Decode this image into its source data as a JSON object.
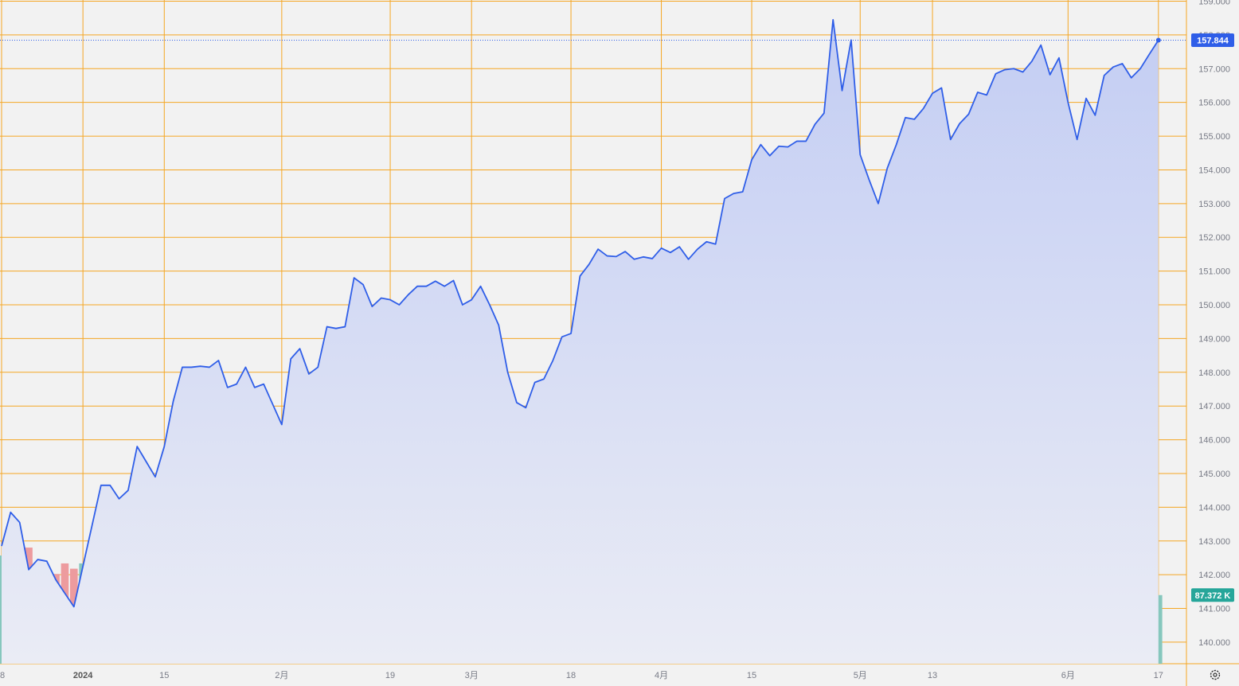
{
  "colors": {
    "background": "#f2f2f2",
    "grid": "#f5a623",
    "line": "#2f5ee8",
    "area_top": "#c3cdf3",
    "area_bottom": "#eaecf5",
    "volume_up": "#86c7bd",
    "volume_down": "#ed9b9e",
    "price_badge": "#2f5ee8",
    "volume_badge": "#26a69a"
  },
  "settings_icon": "gear-icon",
  "chart_data": {
    "type": "area",
    "title": "",
    "xlabel": "",
    "ylabel": "",
    "ylim": [
      139.55,
      159.0
    ],
    "y_ticks": [
      "140.000",
      "141.000",
      "142.000",
      "143.000",
      "144.000",
      "145.000",
      "146.000",
      "147.000",
      "148.000",
      "149.000",
      "150.000",
      "151.000",
      "152.000",
      "153.000",
      "154.000",
      "155.000",
      "156.000",
      "157.000",
      "158.000",
      "159.000"
    ],
    "x_ticks": [
      {
        "label": "8",
        "index": 0,
        "bold": false
      },
      {
        "label": "2024",
        "index": 9,
        "bold": true
      },
      {
        "label": "15",
        "index": 18,
        "bold": false
      },
      {
        "label": "2月",
        "index": 31,
        "bold": false
      },
      {
        "label": "19",
        "index": 43,
        "bold": false
      },
      {
        "label": "3月",
        "index": 52,
        "bold": false
      },
      {
        "label": "18",
        "index": 63,
        "bold": false
      },
      {
        "label": "4月",
        "index": 73,
        "bold": false
      },
      {
        "label": "15",
        "index": 83,
        "bold": false
      },
      {
        "label": "5月",
        "index": 95,
        "bold": false
      },
      {
        "label": "13",
        "index": 103,
        "bold": false
      },
      {
        "label": "6月",
        "index": 118,
        "bold": false
      },
      {
        "label": "17",
        "index": 128,
        "bold": false
      }
    ],
    "last_price_label": "157.844",
    "last_volume_label": "87.372 K",
    "series": [
      {
        "type": "line",
        "values": [
          142.85,
          143.85,
          143.55,
          142.15,
          142.45,
          142.4,
          141.85,
          141.45,
          141.05,
          142.25,
          143.45,
          144.65,
          144.65,
          144.25,
          144.5,
          145.8,
          145.35,
          144.9,
          145.8,
          147.15,
          148.15,
          148.15,
          148.18,
          148.15,
          148.35,
          147.55,
          147.65,
          148.15,
          147.55,
          147.65,
          147.05,
          146.45,
          148.4,
          148.7,
          147.95,
          148.15,
          149.35,
          149.3,
          149.35,
          150.8,
          150.6,
          149.95,
          150.2,
          150.15,
          150.0,
          150.3,
          150.55,
          150.55,
          150.7,
          150.55,
          150.72,
          150.0,
          150.15,
          150.55,
          150.0,
          149.4,
          148.0,
          147.1,
          146.95,
          147.7,
          147.8,
          148.35,
          149.05,
          149.15,
          150.85,
          151.2,
          151.65,
          151.45,
          151.43,
          151.58,
          151.35,
          151.42,
          151.37,
          151.68,
          151.55,
          151.72,
          151.35,
          151.65,
          151.87,
          151.8,
          153.15,
          153.3,
          153.35,
          154.3,
          154.75,
          154.42,
          154.7,
          154.68,
          154.85,
          154.85,
          155.35,
          155.68,
          158.45,
          156.35,
          157.85,
          154.45,
          153.7,
          153.0,
          154.05,
          154.75,
          155.55,
          155.5,
          155.82,
          156.27,
          156.43,
          154.9,
          155.37,
          155.65,
          156.3,
          156.22,
          156.85,
          156.97,
          157.0,
          156.9,
          157.22,
          157.7,
          156.82,
          157.32,
          156.0,
          154.9,
          156.12,
          155.62,
          156.8,
          157.05,
          157.15,
          156.73,
          157.0,
          157.43,
          157.844
        ]
      },
      {
        "type": "bar",
        "name": "",
        "values": [
          41,
          52,
          45,
          44,
          37,
          26,
          34,
          38,
          36,
          38,
          45,
          45,
          52,
          43,
          42,
          52,
          47,
          29,
          52,
          52,
          49,
          46,
          45,
          49,
          49,
          47,
          42,
          43,
          57,
          55,
          48,
          46,
          44,
          43,
          44,
          40,
          42,
          40,
          43,
          38,
          35,
          40,
          34,
          39,
          44,
          36,
          36,
          43,
          36,
          40,
          48,
          45,
          30,
          40,
          42,
          52,
          52,
          38,
          45,
          40,
          43,
          39,
          37,
          44,
          45,
          47,
          39,
          33,
          31,
          34,
          33,
          23,
          24,
          27,
          26,
          27,
          34,
          24,
          24,
          31,
          32,
          31,
          32,
          30,
          27,
          32,
          20,
          23,
          22,
          26,
          36,
          34,
          35,
          60,
          33,
          46,
          42,
          35,
          27,
          28,
          28,
          27,
          26,
          22,
          23,
          34,
          39,
          28,
          25,
          28,
          26,
          30,
          24,
          16,
          24,
          26,
          37,
          38,
          34,
          42,
          39,
          38,
          40,
          33,
          33,
          43,
          36,
          51,
          26
        ]
      }
    ]
  }
}
